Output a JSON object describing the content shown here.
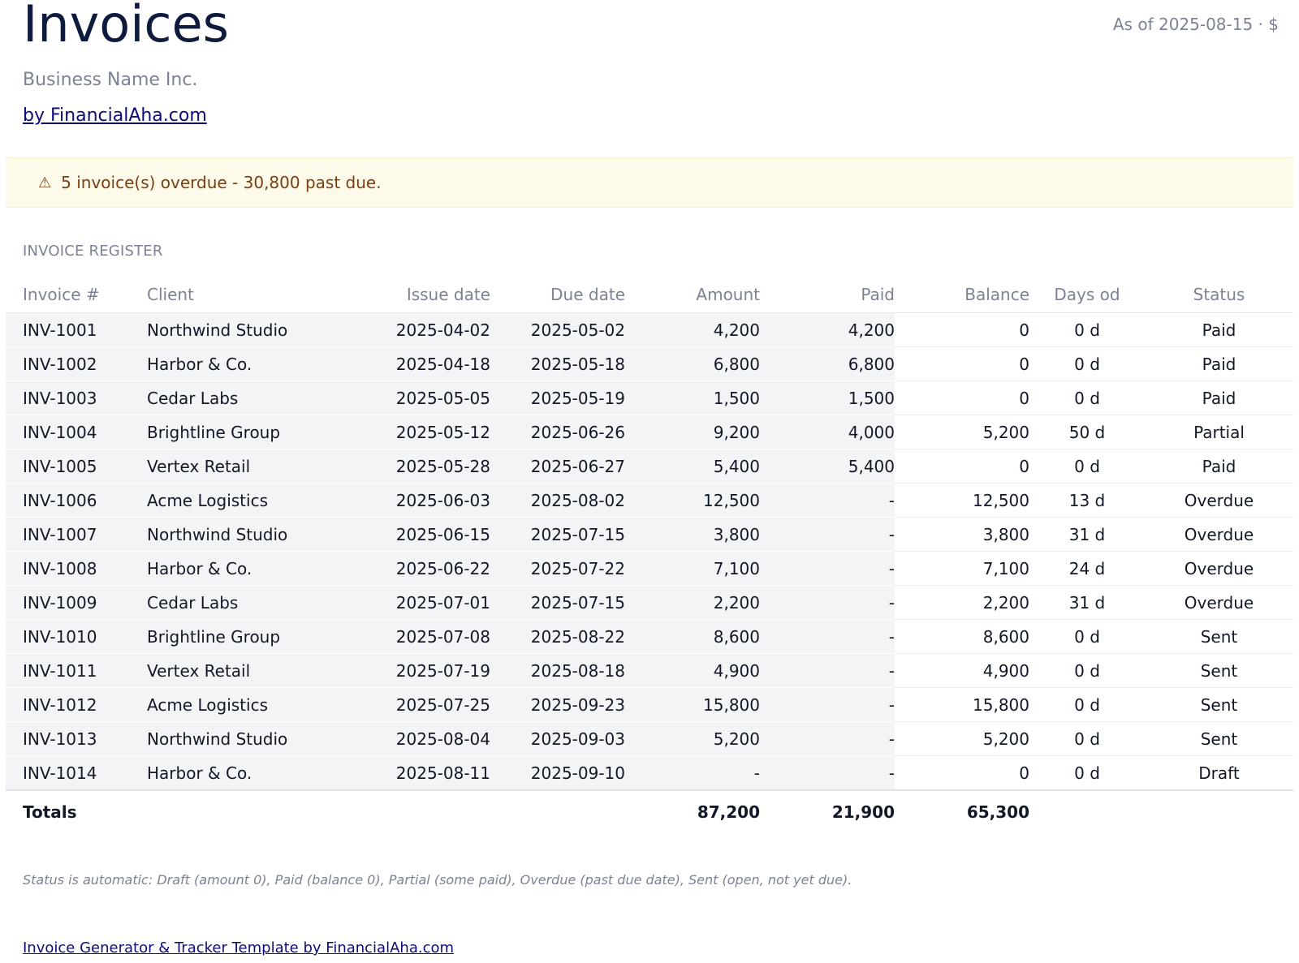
{
  "header": {
    "title": "Invoices",
    "as_of": "As of 2025-08-15 · $",
    "business": "Business Name Inc.",
    "by_link": "by FinancialAha.com"
  },
  "alert": {
    "icon": "warning-icon",
    "text": "5 invoice(s) overdue - 30,800 past due."
  },
  "register": {
    "label": "INVOICE REGISTER",
    "columns": [
      "Invoice #",
      "Client",
      "Issue date",
      "Due date",
      "Amount",
      "Paid",
      "Balance",
      "Days od",
      "Status"
    ],
    "rows": [
      [
        "INV-1001",
        "Northwind Studio",
        "2025-04-02",
        "2025-05-02",
        "4,200",
        "4,200",
        "0",
        "0 d",
        "Paid"
      ],
      [
        "INV-1002",
        "Harbor & Co.",
        "2025-04-18",
        "2025-05-18",
        "6,800",
        "6,800",
        "0",
        "0 d",
        "Paid"
      ],
      [
        "INV-1003",
        "Cedar Labs",
        "2025-05-05",
        "2025-05-19",
        "1,500",
        "1,500",
        "0",
        "0 d",
        "Paid"
      ],
      [
        "INV-1004",
        "Brightline Group",
        "2025-05-12",
        "2025-06-26",
        "9,200",
        "4,000",
        "5,200",
        "50 d",
        "Partial"
      ],
      [
        "INV-1005",
        "Vertex Retail",
        "2025-05-28",
        "2025-06-27",
        "5,400",
        "5,400",
        "0",
        "0 d",
        "Paid"
      ],
      [
        "INV-1006",
        "Acme Logistics",
        "2025-06-03",
        "2025-08-02",
        "12,500",
        "-",
        "12,500",
        "13 d",
        "Overdue"
      ],
      [
        "INV-1007",
        "Northwind Studio",
        "2025-06-15",
        "2025-07-15",
        "3,800",
        "-",
        "3,800",
        "31 d",
        "Overdue"
      ],
      [
        "INV-1008",
        "Harbor & Co.",
        "2025-06-22",
        "2025-07-22",
        "7,100",
        "-",
        "7,100",
        "24 d",
        "Overdue"
      ],
      [
        "INV-1009",
        "Cedar Labs",
        "2025-07-01",
        "2025-07-15",
        "2,200",
        "-",
        "2,200",
        "31 d",
        "Overdue"
      ],
      [
        "INV-1010",
        "Brightline Group",
        "2025-07-08",
        "2025-08-22",
        "8,600",
        "-",
        "8,600",
        "0 d",
        "Sent"
      ],
      [
        "INV-1011",
        "Vertex Retail",
        "2025-07-19",
        "2025-08-18",
        "4,900",
        "-",
        "4,900",
        "0 d",
        "Sent"
      ],
      [
        "INV-1012",
        "Acme Logistics",
        "2025-07-25",
        "2025-09-23",
        "15,800",
        "-",
        "15,800",
        "0 d",
        "Sent"
      ],
      [
        "INV-1013",
        "Northwind Studio",
        "2025-08-04",
        "2025-09-03",
        "5,200",
        "-",
        "5,200",
        "0 d",
        "Sent"
      ],
      [
        "INV-1014",
        "Harbor & Co.",
        "2025-08-11",
        "2025-09-10",
        "-",
        "-",
        "0",
        "0 d",
        "Draft"
      ]
    ],
    "totals": {
      "label": "Totals",
      "amount": "87,200",
      "paid": "21,900",
      "balance": "65,300"
    }
  },
  "note": "Status is automatic: Draft (amount 0), Paid (balance 0), Partial (some paid), Overdue (past due date), Sent (open, not yet due).",
  "footer_link": "Invoice Generator & Tracker Template by FinancialAha.com"
}
